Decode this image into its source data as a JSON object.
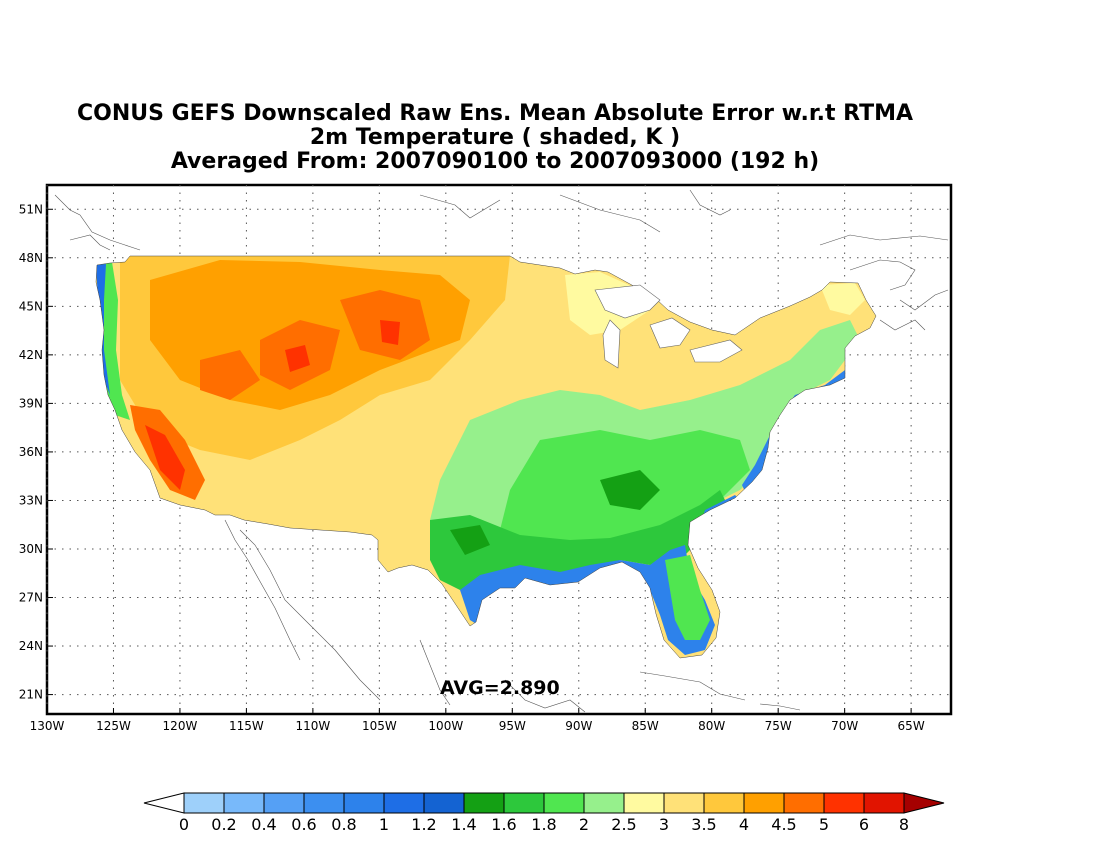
{
  "title": {
    "line1": "CONUS GEFS Downscaled Raw Ens. Mean Absolute Error w.r.t RTMA",
    "line2": "2m Temperature ( shaded, K )",
    "line3": "Averaged From: 2007090100 to 2007093000 (192 h)"
  },
  "avg_label": "AVG=2.890",
  "map": {
    "lon_range": [
      -130,
      -62
    ],
    "lat_range": [
      19.8,
      52.5
    ],
    "lat_ticks": [
      {
        "value": 51,
        "label": "51N"
      },
      {
        "value": 48,
        "label": "48N"
      },
      {
        "value": 45,
        "label": "45N"
      },
      {
        "value": 42,
        "label": "42N"
      },
      {
        "value": 39,
        "label": "39N"
      },
      {
        "value": 36,
        "label": "36N"
      },
      {
        "value": 33,
        "label": "33N"
      },
      {
        "value": 30,
        "label": "30N"
      },
      {
        "value": 27,
        "label": "27N"
      },
      {
        "value": 24,
        "label": "24N"
      },
      {
        "value": 21,
        "label": "21N"
      }
    ],
    "lon_ticks": [
      {
        "value": -130,
        "label": "130W"
      },
      {
        "value": -125,
        "label": "125W"
      },
      {
        "value": -120,
        "label": "120W"
      },
      {
        "value": -115,
        "label": "115W"
      },
      {
        "value": -110,
        "label": "110W"
      },
      {
        "value": -105,
        "label": "105W"
      },
      {
        "value": -100,
        "label": "100W"
      },
      {
        "value": -95,
        "label": "95W"
      },
      {
        "value": -90,
        "label": "90W"
      },
      {
        "value": -85,
        "label": "85W"
      },
      {
        "value": -80,
        "label": "80W"
      },
      {
        "value": -75,
        "label": "75W"
      },
      {
        "value": -70,
        "label": "70W"
      },
      {
        "value": -65,
        "label": "65W"
      }
    ],
    "grid": true
  },
  "colorbar": {
    "labels": [
      "0",
      "0.2",
      "0.4",
      "0.6",
      "0.8",
      "1",
      "1.2",
      "1.4",
      "1.6",
      "1.8",
      "2",
      "2.5",
      "3",
      "3.5",
      "4",
      "4.5",
      "5",
      "6",
      "8"
    ],
    "colors": [
      "#9ed0fa",
      "#78b9fa",
      "#55a0f5",
      "#3c8ff0",
      "#2d82eb",
      "#1e6ee6",
      "#1463d2",
      "#14a014",
      "#2dc83c",
      "#50e650",
      "#96f08c",
      "#fffaa0",
      "#ffe178",
      "#ffc83c",
      "#ffa000",
      "#ff6e00",
      "#ff3200",
      "#e11400"
    ],
    "under_color": "#ffffff",
    "over_color": "#a50000"
  }
}
